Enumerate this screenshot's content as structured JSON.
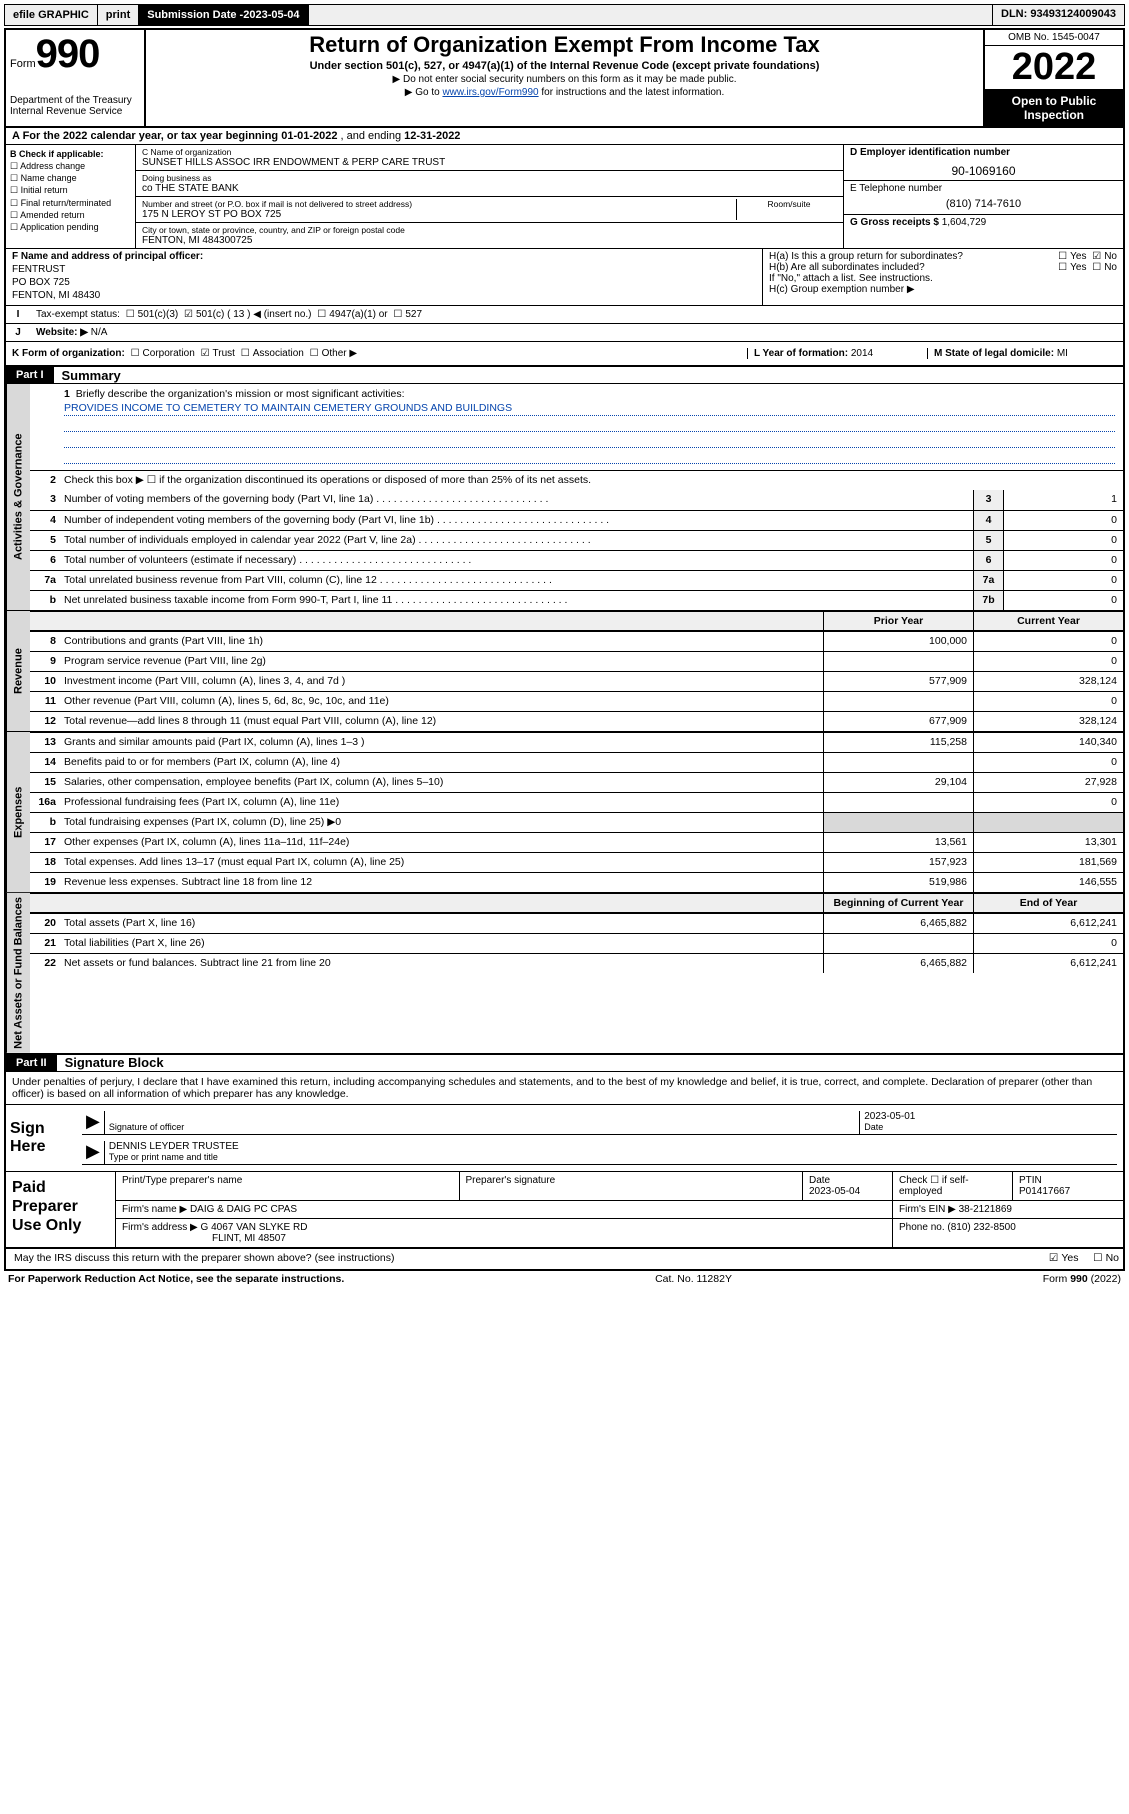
{
  "topbar": {
    "efile": "efile GRAPHIC",
    "print": "print",
    "submission_label": "Submission Date - ",
    "submission_date": "2023-05-04",
    "dln_label": "DLN: ",
    "dln": "93493124009043"
  },
  "header": {
    "form_word": "Form",
    "form_num": "990",
    "dept": "Department of the Treasury",
    "irs": "Internal Revenue Service",
    "title": "Return of Organization Exempt From Income Tax",
    "sub": "Under section 501(c), 527, or 4947(a)(1) of the Internal Revenue Code (except private foundations)",
    "warn": "Do not enter social security numbers on this form as it may be made public.",
    "goto_pre": "Go to ",
    "goto_link": "www.irs.gov/Form990",
    "goto_post": " for instructions and the latest information.",
    "omb": "OMB No. 1545-0047",
    "year": "2022",
    "inspect1": "Open to Public",
    "inspect2": "Inspection"
  },
  "taxyear": {
    "a_label": "A For the 2022 calendar year, or tax year beginning ",
    "begin": "01-01-2022",
    "mid": " , and ending ",
    "end": "12-31-2022"
  },
  "entity_left": {
    "b": "B Check if applicable:",
    "addr": "Address change",
    "name": "Name change",
    "init": "Initial return",
    "final": "Final return/terminated",
    "amend": "Amended return",
    "app": "Application pending"
  },
  "entity_mid": {
    "c_lbl": "C Name of organization",
    "c_val": "SUNSET HILLS ASSOC IRR ENDOWMENT & PERP CARE TRUST",
    "dba_lbl": "Doing business as",
    "dba_val": "co THE STATE BANK",
    "street_lbl": "Number and street (or P.O. box if mail is not delivered to street address)",
    "room_lbl": "Room/suite",
    "street_val": "175 N LEROY ST PO BOX 725",
    "city_lbl": "City or town, state or province, country, and ZIP or foreign postal code",
    "city_val": "FENTON, MI  484300725"
  },
  "entity_right": {
    "d_lbl": "D Employer identification number",
    "d_val": "90-1069160",
    "e_lbl": "E Telephone number",
    "e_val": "(810) 714-7610",
    "g_lbl": "G Gross receipts $ ",
    "g_val": "1,604,729"
  },
  "f": {
    "lbl": "F Name and address of principal officer:",
    "l1": "FENTRUST",
    "l2": "PO BOX 725",
    "l3": "FENTON, MI  48430"
  },
  "h": {
    "a": "H(a) Is this a group return for subordinates?",
    "b": "H(b) Are all subordinates included?",
    "note": "If \"No,\" attach a list. See instructions.",
    "c": "H(c) Group exemption number ▶",
    "yes": "Yes",
    "no": "No"
  },
  "i": {
    "lbl": "Tax-exempt status:",
    "a": "501(c)(3)",
    "b": "501(c) ( 13 ) ◀ (insert no.)",
    "c": "4947(a)(1) or",
    "d": "527"
  },
  "j": {
    "lbl": "Website: ▶",
    "val": "N/A"
  },
  "k": {
    "lbl": "K Form of organization:",
    "corp": "Corporation",
    "trust": "Trust",
    "assoc": "Association",
    "other": "Other ▶",
    "l_lbl": "L Year of formation: ",
    "l_val": "2014",
    "m_lbl": "M State of legal domicile: ",
    "m_val": "MI"
  },
  "parts": {
    "p1": "Part I",
    "p1_title": "Summary",
    "p2": "Part II",
    "p2_title": "Signature Block"
  },
  "sections": {
    "ag": "Activities & Governance",
    "rev": "Revenue",
    "exp": "Expenses",
    "nab": "Net Assets or Fund Balances"
  },
  "brief": {
    "lbl": "Briefly describe the organization's mission or most significant activities:",
    "val": "PROVIDES INCOME TO CEMETERY TO MAINTAIN CEMETERY GROUNDS AND BUILDINGS"
  },
  "line2": "Check this box ▶ ☐ if the organization discontinued its operations or disposed of more than 25% of its net assets.",
  "ag_lines": [
    {
      "n": "3",
      "d": "Number of voting members of the governing body (Part VI, line 1a)",
      "c": "3",
      "v": "1"
    },
    {
      "n": "4",
      "d": "Number of independent voting members of the governing body (Part VI, line 1b)",
      "c": "4",
      "v": "0"
    },
    {
      "n": "5",
      "d": "Total number of individuals employed in calendar year 2022 (Part V, line 2a)",
      "c": "5",
      "v": "0"
    },
    {
      "n": "6",
      "d": "Total number of volunteers (estimate if necessary)",
      "c": "6",
      "v": "0"
    },
    {
      "n": "7a",
      "d": "Total unrelated business revenue from Part VIII, column (C), line 12",
      "c": "7a",
      "v": "0"
    },
    {
      "n": "b",
      "d": "Net unrelated business taxable income from Form 990-T, Part I, line 11",
      "c": "7b",
      "v": "0"
    }
  ],
  "col_hdr": {
    "prior": "Prior Year",
    "current": "Current Year"
  },
  "rev_lines": [
    {
      "n": "8",
      "d": "Contributions and grants (Part VIII, line 1h)",
      "p": "100,000",
      "c": "0"
    },
    {
      "n": "9",
      "d": "Program service revenue (Part VIII, line 2g)",
      "p": "",
      "c": "0"
    },
    {
      "n": "10",
      "d": "Investment income (Part VIII, column (A), lines 3, 4, and 7d )",
      "p": "577,909",
      "c": "328,124"
    },
    {
      "n": "11",
      "d": "Other revenue (Part VIII, column (A), lines 5, 6d, 8c, 9c, 10c, and 11e)",
      "p": "",
      "c": "0"
    },
    {
      "n": "12",
      "d": "Total revenue—add lines 8 through 11 (must equal Part VIII, column (A), line 12)",
      "p": "677,909",
      "c": "328,124"
    }
  ],
  "exp_lines": [
    {
      "n": "13",
      "d": "Grants and similar amounts paid (Part IX, column (A), lines 1–3 )",
      "p": "115,258",
      "c": "140,340"
    },
    {
      "n": "14",
      "d": "Benefits paid to or for members (Part IX, column (A), line 4)",
      "p": "",
      "c": "0"
    },
    {
      "n": "15",
      "d": "Salaries, other compensation, employee benefits (Part IX, column (A), lines 5–10)",
      "p": "29,104",
      "c": "27,928"
    },
    {
      "n": "16a",
      "d": "Professional fundraising fees (Part IX, column (A), line 11e)",
      "p": "",
      "c": "0"
    },
    {
      "n": "b",
      "d": "Total fundraising expenses (Part IX, column (D), line 25) ▶0",
      "p": "grey",
      "c": "grey"
    },
    {
      "n": "17",
      "d": "Other expenses (Part IX, column (A), lines 11a–11d, 11f–24e)",
      "p": "13,561",
      "c": "13,301"
    },
    {
      "n": "18",
      "d": "Total expenses. Add lines 13–17 (must equal Part IX, column (A), line 25)",
      "p": "157,923",
      "c": "181,569"
    },
    {
      "n": "19",
      "d": "Revenue less expenses. Subtract line 18 from line 12",
      "p": "519,986",
      "c": "146,555"
    }
  ],
  "nab_hdr": {
    "b": "Beginning of Current Year",
    "e": "End of Year"
  },
  "nab_lines": [
    {
      "n": "20",
      "d": "Total assets (Part X, line 16)",
      "p": "6,465,882",
      "c": "6,612,241"
    },
    {
      "n": "21",
      "d": "Total liabilities (Part X, line 26)",
      "p": "",
      "c": "0"
    },
    {
      "n": "22",
      "d": "Net assets or fund balances. Subtract line 21 from line 20",
      "p": "6,465,882",
      "c": "6,612,241"
    }
  ],
  "penalties": "Under penalties of perjury, I declare that I have examined this return, including accompanying schedules and statements, and to the best of my knowledge and belief, it is true, correct, and complete. Declaration of preparer (other than officer) is based on all information of which preparer has any knowledge.",
  "sign": {
    "label": "Sign Here",
    "sig_of_officer": "Signature of officer",
    "date_lbl": "Date",
    "date_val": "2023-05-01",
    "name": "DENNIS LEYDER TRUSTEE",
    "name_lbl": "Type or print name and title"
  },
  "paid": {
    "label": "Paid Preparer Use Only",
    "h_print": "Print/Type preparer's name",
    "h_sig": "Preparer's signature",
    "h_date": "Date",
    "date_val": "2023-05-04",
    "check_lbl": "Check ☐ if self-employed",
    "ptin_lbl": "PTIN",
    "ptin_val": "P01417667",
    "firm_name_lbl": "Firm's name    ▶ ",
    "firm_name": "DAIG & DAIG PC CPAS",
    "firm_ein_lbl": "Firm's EIN ▶ ",
    "firm_ein": "38-2121869",
    "firm_addr_lbl": "Firm's address ▶ ",
    "firm_addr1": "G 4067 VAN SLYKE RD",
    "firm_addr2": "FLINT, MI  48507",
    "phone_lbl": "Phone no. ",
    "phone": "(810) 232-8500"
  },
  "discuss": {
    "q": "May the IRS discuss this return with the preparer shown above? (see instructions)",
    "yes": "Yes",
    "no": "No"
  },
  "footer": {
    "left": "For Paperwork Reduction Act Notice, see the separate instructions.",
    "mid": "Cat. No. 11282Y",
    "right_pre": "Form ",
    "right_b": "990",
    "right_post": " (2022)"
  }
}
